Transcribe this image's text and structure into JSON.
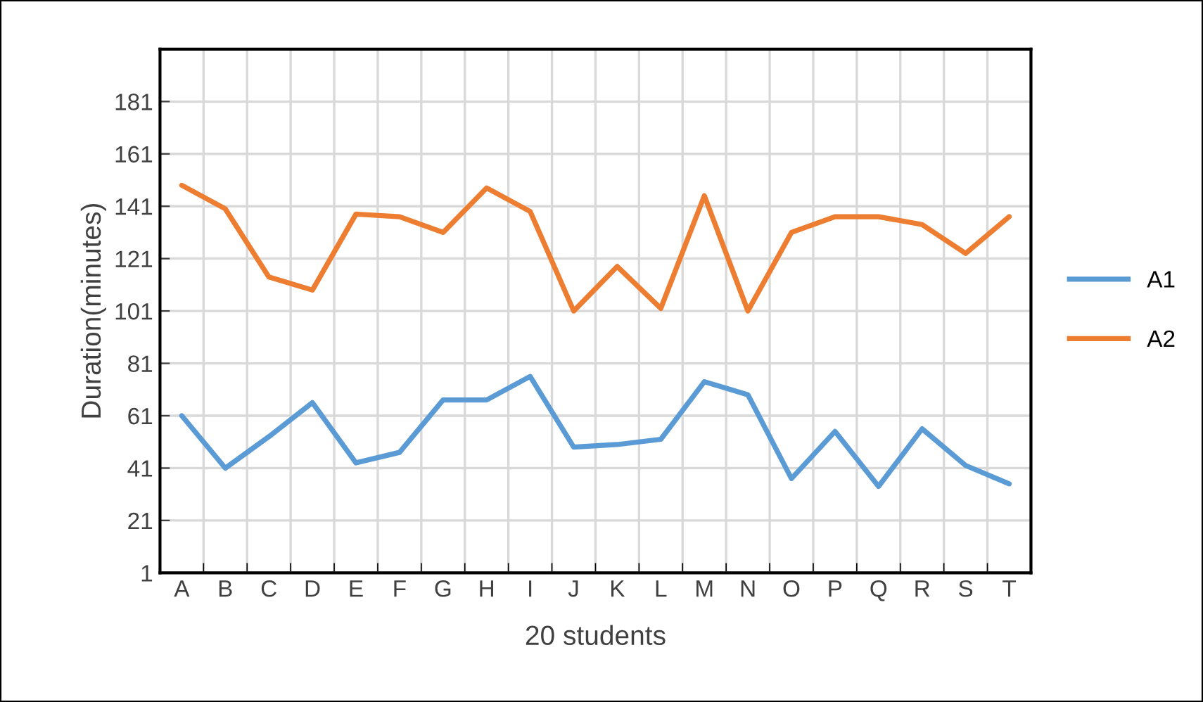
{
  "chart_data": {
    "type": "line",
    "xlabel": "20 students",
    "ylabel": "Duration(minutes)",
    "categories": [
      "A",
      "B",
      "C",
      "D",
      "E",
      "F",
      "G",
      "H",
      "I",
      "J",
      "K",
      "L",
      "M",
      "N",
      "O",
      "P",
      "Q",
      "R",
      "S",
      "T"
    ],
    "series": [
      {
        "name": "A1",
        "color": "#5b9bd5",
        "values": [
          61,
          41,
          53,
          66,
          43,
          47,
          67,
          67,
          76,
          49,
          50,
          52,
          74,
          69,
          37,
          55,
          34,
          56,
          42,
          35
        ]
      },
      {
        "name": "A2",
        "color": "#ed7d31",
        "values": [
          149,
          140,
          114,
          109,
          138,
          137,
          131,
          148,
          139,
          101,
          118,
          102,
          145,
          101,
          131,
          137,
          137,
          134,
          123,
          137
        ]
      }
    ],
    "ylim": [
      1,
      201
    ],
    "yticks": [
      1,
      21,
      41,
      61,
      81,
      101,
      121,
      141,
      161,
      181
    ],
    "grid": true,
    "legend": "right",
    "marker": "none",
    "line_style": "solid"
  }
}
